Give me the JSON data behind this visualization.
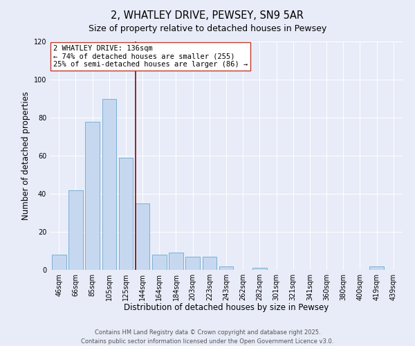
{
  "title": "2, WHATLEY DRIVE, PEWSEY, SN9 5AR",
  "subtitle": "Size of property relative to detached houses in Pewsey",
  "xlabel": "Distribution of detached houses by size in Pewsey",
  "ylabel": "Number of detached properties",
  "categories": [
    "46sqm",
    "66sqm",
    "85sqm",
    "105sqm",
    "125sqm",
    "144sqm",
    "164sqm",
    "184sqm",
    "203sqm",
    "223sqm",
    "243sqm",
    "262sqm",
    "282sqm",
    "301sqm",
    "321sqm",
    "341sqm",
    "360sqm",
    "380sqm",
    "400sqm",
    "419sqm",
    "439sqm"
  ],
  "values": [
    8,
    42,
    78,
    90,
    59,
    35,
    8,
    9,
    7,
    7,
    2,
    0,
    1,
    0,
    0,
    0,
    0,
    0,
    0,
    2,
    0
  ],
  "bar_color": "#c5d8f0",
  "bar_edge_color": "#7bafd4",
  "vline_color": "#8b0000",
  "annotation_title": "2 WHATLEY DRIVE: 136sqm",
  "annotation_line1": "← 74% of detached houses are smaller (255)",
  "annotation_line2": "25% of semi-detached houses are larger (86) →",
  "annotation_box_color": "#ffffff",
  "annotation_box_edge": "#c0392b",
  "ylim": [
    0,
    120
  ],
  "yticks": [
    0,
    20,
    40,
    60,
    80,
    100,
    120
  ],
  "bg_color": "#e8ecf8",
  "footer1": "Contains HM Land Registry data © Crown copyright and database right 2025.",
  "footer2": "Contains public sector information licensed under the Open Government Licence v3.0.",
  "title_fontsize": 10.5,
  "subtitle_fontsize": 9,
  "axis_fontsize": 8.5,
  "tick_fontsize": 7,
  "annotation_fontsize": 7.5,
  "footer_fontsize": 6
}
